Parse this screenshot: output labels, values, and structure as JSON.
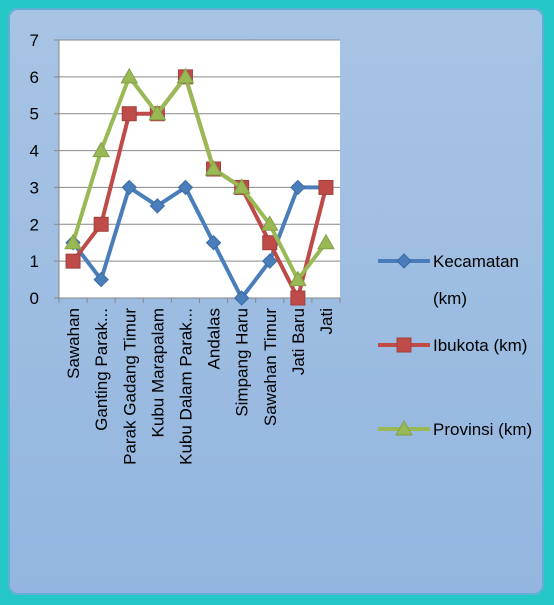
{
  "chart_data": {
    "type": "line",
    "categories": [
      "Sawahan",
      "Ganting Parak...",
      "Parak Gadang Timur",
      "Kubu Marapalam",
      "Kubu Dalam Parak...",
      "Andalas",
      "Simpang Haru",
      "Sawahan Timur",
      "Jati Baru",
      "Jati"
    ],
    "series": [
      {
        "name": "Kecamatan (km)",
        "color": "#4a7ebb",
        "marker": "diamond",
        "values": [
          1.5,
          0.5,
          3,
          2.5,
          3,
          1.5,
          0,
          1,
          3,
          3
        ]
      },
      {
        "name": "Ibukota (km)",
        "color": "#be4b48",
        "marker": "square",
        "values": [
          1,
          2,
          5,
          5,
          6,
          3.5,
          3,
          1.5,
          0,
          3
        ]
      },
      {
        "name": "Provinsi (km)",
        "color": "#98b954",
        "marker": "triangle",
        "values": [
          1.5,
          4,
          6,
          5,
          6,
          3.5,
          3,
          2,
          0.5,
          1.5
        ]
      }
    ],
    "y_ticks": [
      "0",
      "1",
      "2",
      "3",
      "4",
      "5",
      "6",
      "7"
    ],
    "ylim": [
      0,
      7
    ],
    "grid": true,
    "legend_position": "right"
  }
}
